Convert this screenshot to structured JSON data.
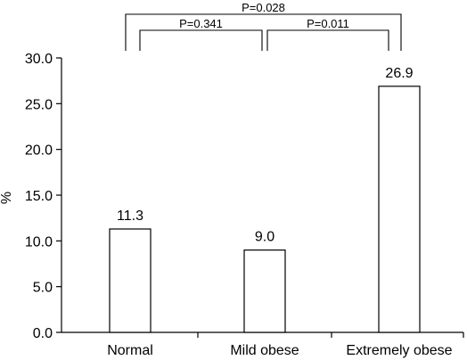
{
  "chart_data": {
    "type": "bar",
    "title": "",
    "xlabel": "",
    "ylabel": "%",
    "ylim": [
      0,
      30
    ],
    "yticks": [
      "0.0",
      "5.0",
      "10.0",
      "15.0",
      "20.0",
      "25.0",
      "30.0"
    ],
    "ytick_values": [
      0,
      5,
      10,
      15,
      20,
      25,
      30
    ],
    "categories": [
      "Normal",
      "Mild obese",
      "Extremely obese"
    ],
    "values": [
      11.3,
      9.0,
      26.9
    ],
    "value_labels": [
      "11.3",
      "9.0",
      "26.9"
    ],
    "grid": false,
    "bar_fill": "#ffffff",
    "bar_stroke": "#000000",
    "comparisons": [
      {
        "from": 0,
        "to": 1,
        "label": "P=0.341"
      },
      {
        "from": 1,
        "to": 2,
        "label": "P=0.011"
      },
      {
        "from": 0,
        "to": 2,
        "label": "P=0.028"
      }
    ]
  }
}
